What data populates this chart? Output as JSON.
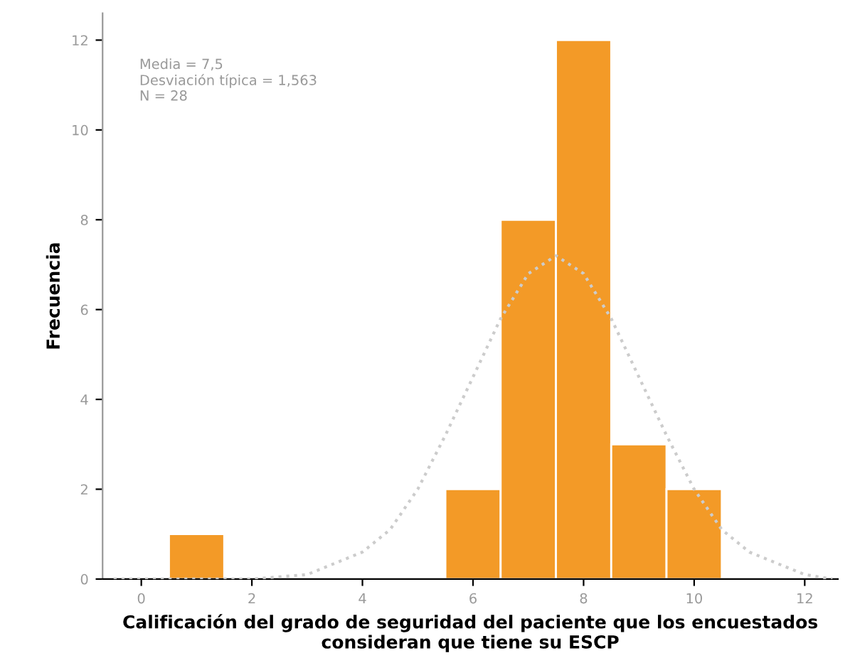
{
  "chart_data": {
    "type": "histogram",
    "xlabel": "Calificación del grado de seguridad del paciente que los encuestados consideran que tiene su ESCP",
    "ylabel": "Frecuencia",
    "bins": [
      0.5,
      1.5,
      2.5,
      3.5,
      4.5,
      5.5,
      6.5,
      7.5,
      8.5,
      9.5,
      10.5
    ],
    "values": [
      1,
      0,
      0,
      0,
      0,
      2,
      8,
      12,
      3,
      2
    ],
    "color": "#f39a27",
    "series": [
      {
        "type": "line",
        "color": "#cccccc",
        "line_style": "dotted",
        "x": [
          -0.5,
          0,
          1,
          2,
          3,
          4,
          4.5,
          5,
          5.5,
          6,
          6.5,
          7,
          7.5,
          8,
          8.5,
          9,
          9.5,
          10,
          10.5,
          11,
          12,
          12.5
        ],
        "values": [
          0,
          0,
          0,
          0,
          0.1,
          0.6,
          1.1,
          2.0,
          3.2,
          4.5,
          5.8,
          6.8,
          7.2,
          6.8,
          5.8,
          4.5,
          3.2,
          2.0,
          1.1,
          0.6,
          0.1,
          0
        ]
      }
    ],
    "annotations": [
      "Media = 7,5\nDesviación típica = 1,563\nN = 28"
    ],
    "xlim": [
      -0.7,
      12.6
    ],
    "ylim": [
      0,
      12.6
    ],
    "xticks": [
      0,
      2,
      4,
      6,
      8,
      10,
      12
    ],
    "yticks": [
      0,
      2,
      4,
      6,
      8,
      10,
      12
    ],
    "grid": false,
    "legend": false
  }
}
